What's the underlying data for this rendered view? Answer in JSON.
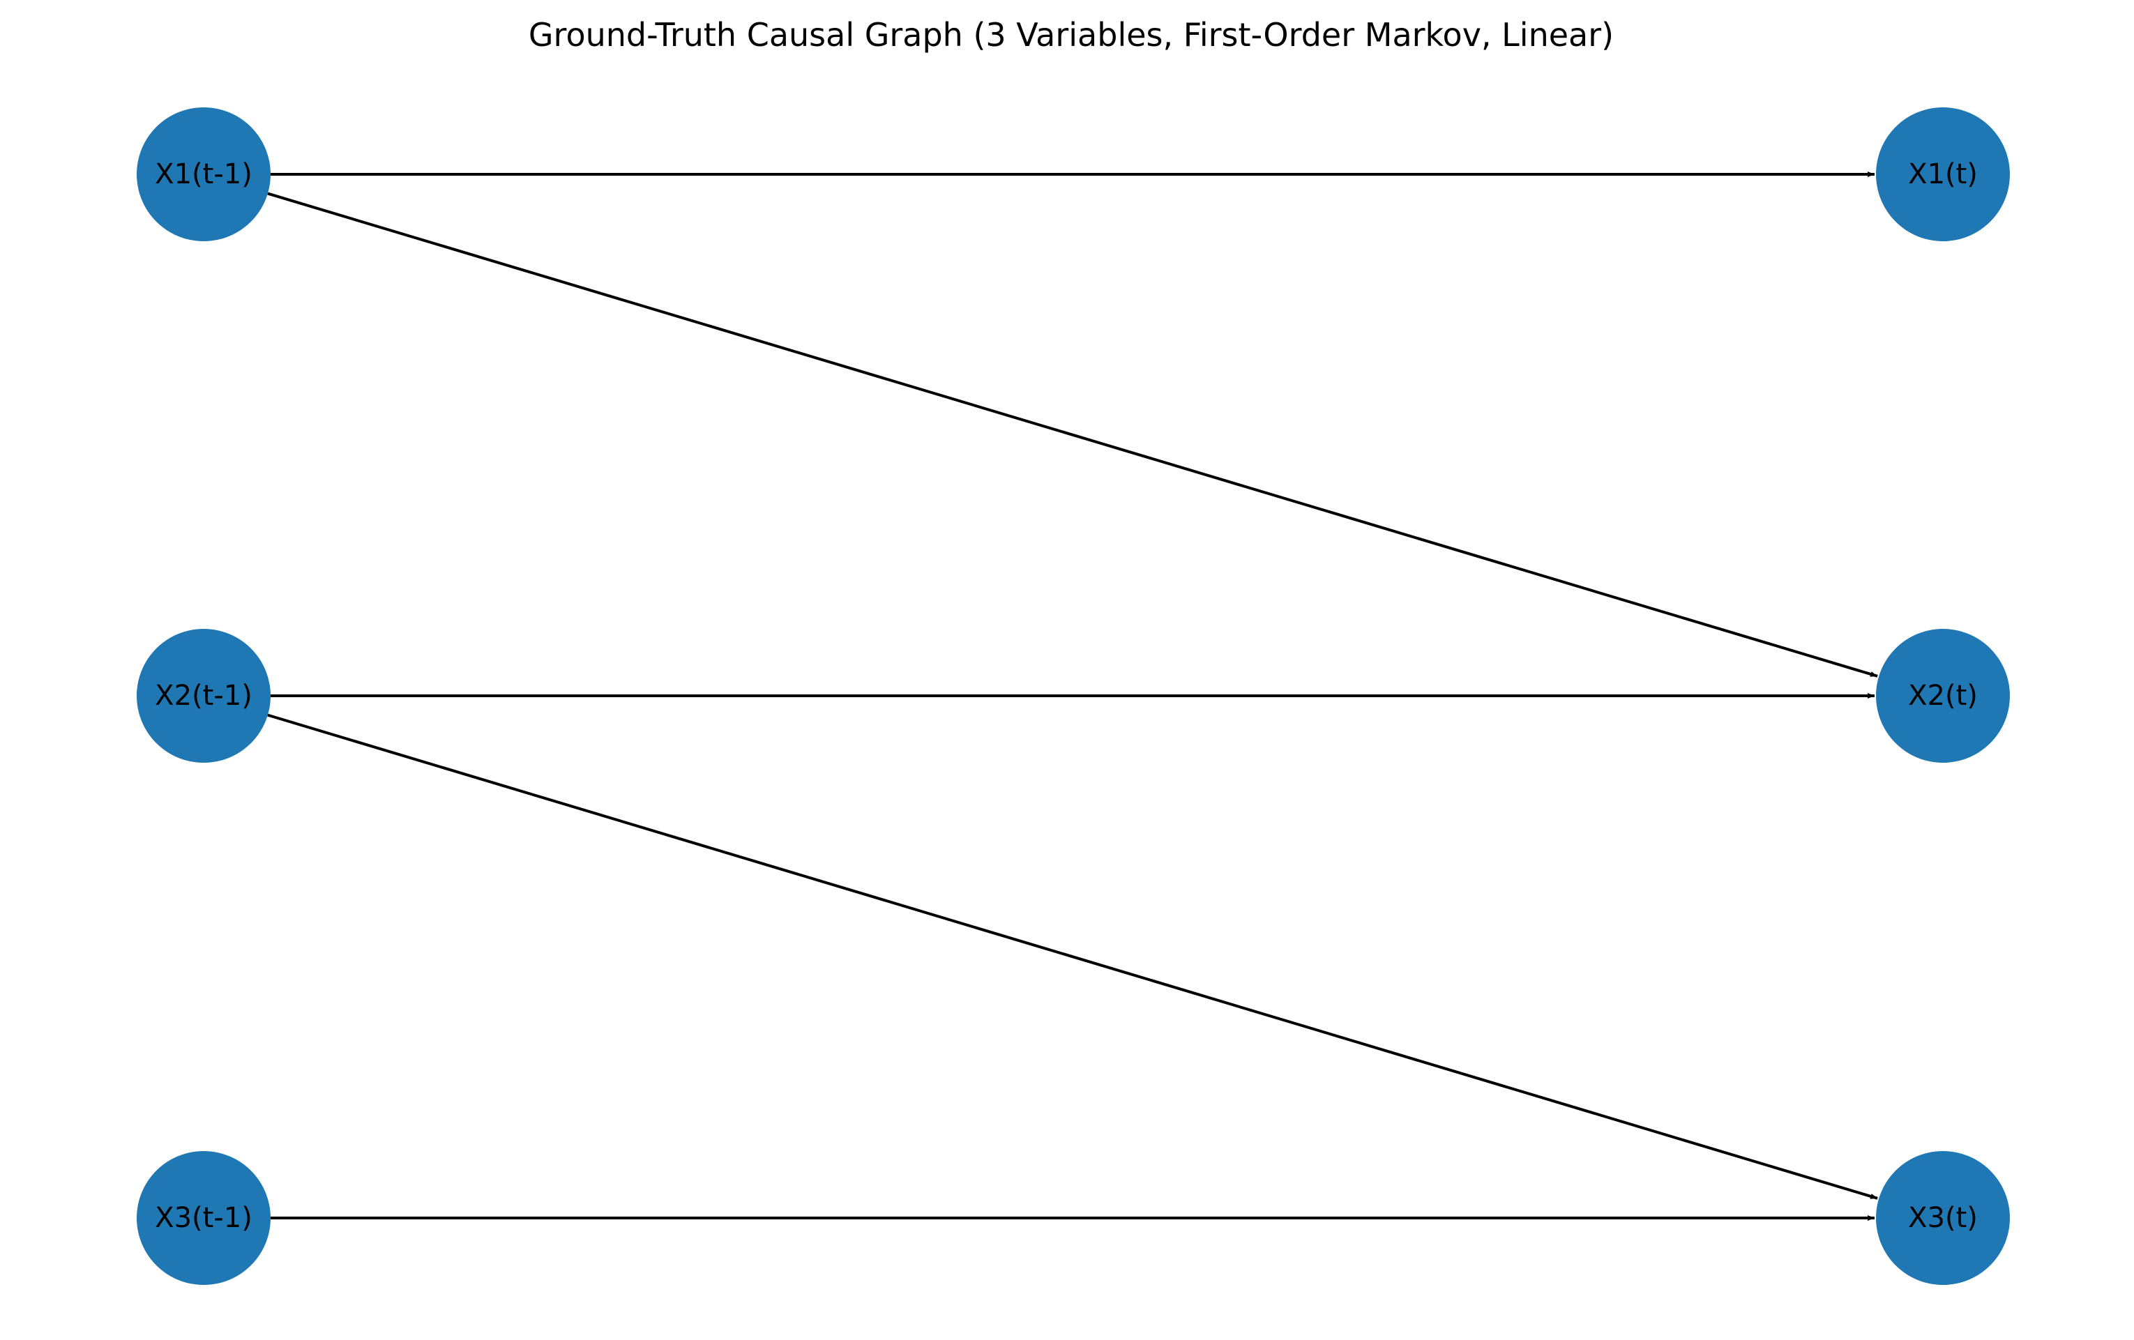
{
  "title": "Ground-Truth Causal Graph (3 Variables, First-Order Markov, Linear)",
  "colors": {
    "node_fill": "#1f77b4",
    "edge": "#000000",
    "label": "#000000",
    "background": "#ffffff"
  },
  "nodes": [
    {
      "id": "x1_prev",
      "label": "X1(t-1)"
    },
    {
      "id": "x2_prev",
      "label": "X2(t-1)"
    },
    {
      "id": "x3_prev",
      "label": "X3(t-1)"
    },
    {
      "id": "x1_now",
      "label": "X1(t)"
    },
    {
      "id": "x2_now",
      "label": "X2(t)"
    },
    {
      "id": "x3_now",
      "label": "X3(t)"
    }
  ],
  "edges": [
    {
      "from": "x1_prev",
      "to": "x1_now"
    },
    {
      "from": "x1_prev",
      "to": "x2_now"
    },
    {
      "from": "x2_prev",
      "to": "x2_now"
    },
    {
      "from": "x2_prev",
      "to": "x3_now"
    },
    {
      "from": "x3_prev",
      "to": "x3_now"
    }
  ]
}
